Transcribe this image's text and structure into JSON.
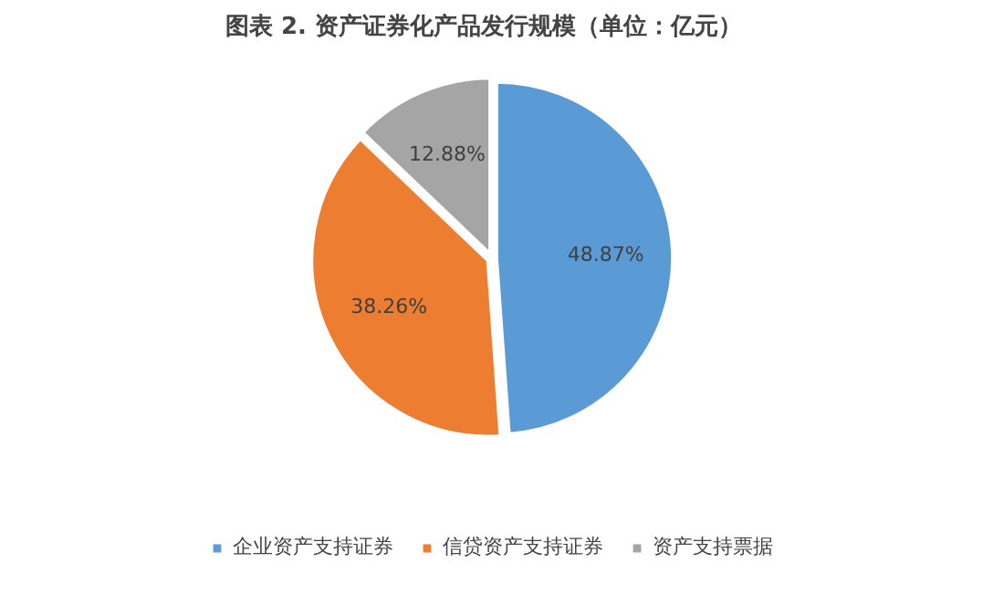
{
  "chart_data": {
    "type": "pie",
    "title": "图表 2.   资产证券化产品发行规模（单位：亿元）",
    "categories": [
      "企业资产支持证券",
      "信贷资产支持证券",
      "资产支持票据"
    ],
    "values": [
      48.87,
      38.26,
      12.88
    ],
    "colors": [
      "#5b9bd5",
      "#ed7d31",
      "#a5a5a5"
    ],
    "value_labels": [
      "48.87%",
      "38.26%",
      "12.88%"
    ],
    "legend": "bottom"
  }
}
